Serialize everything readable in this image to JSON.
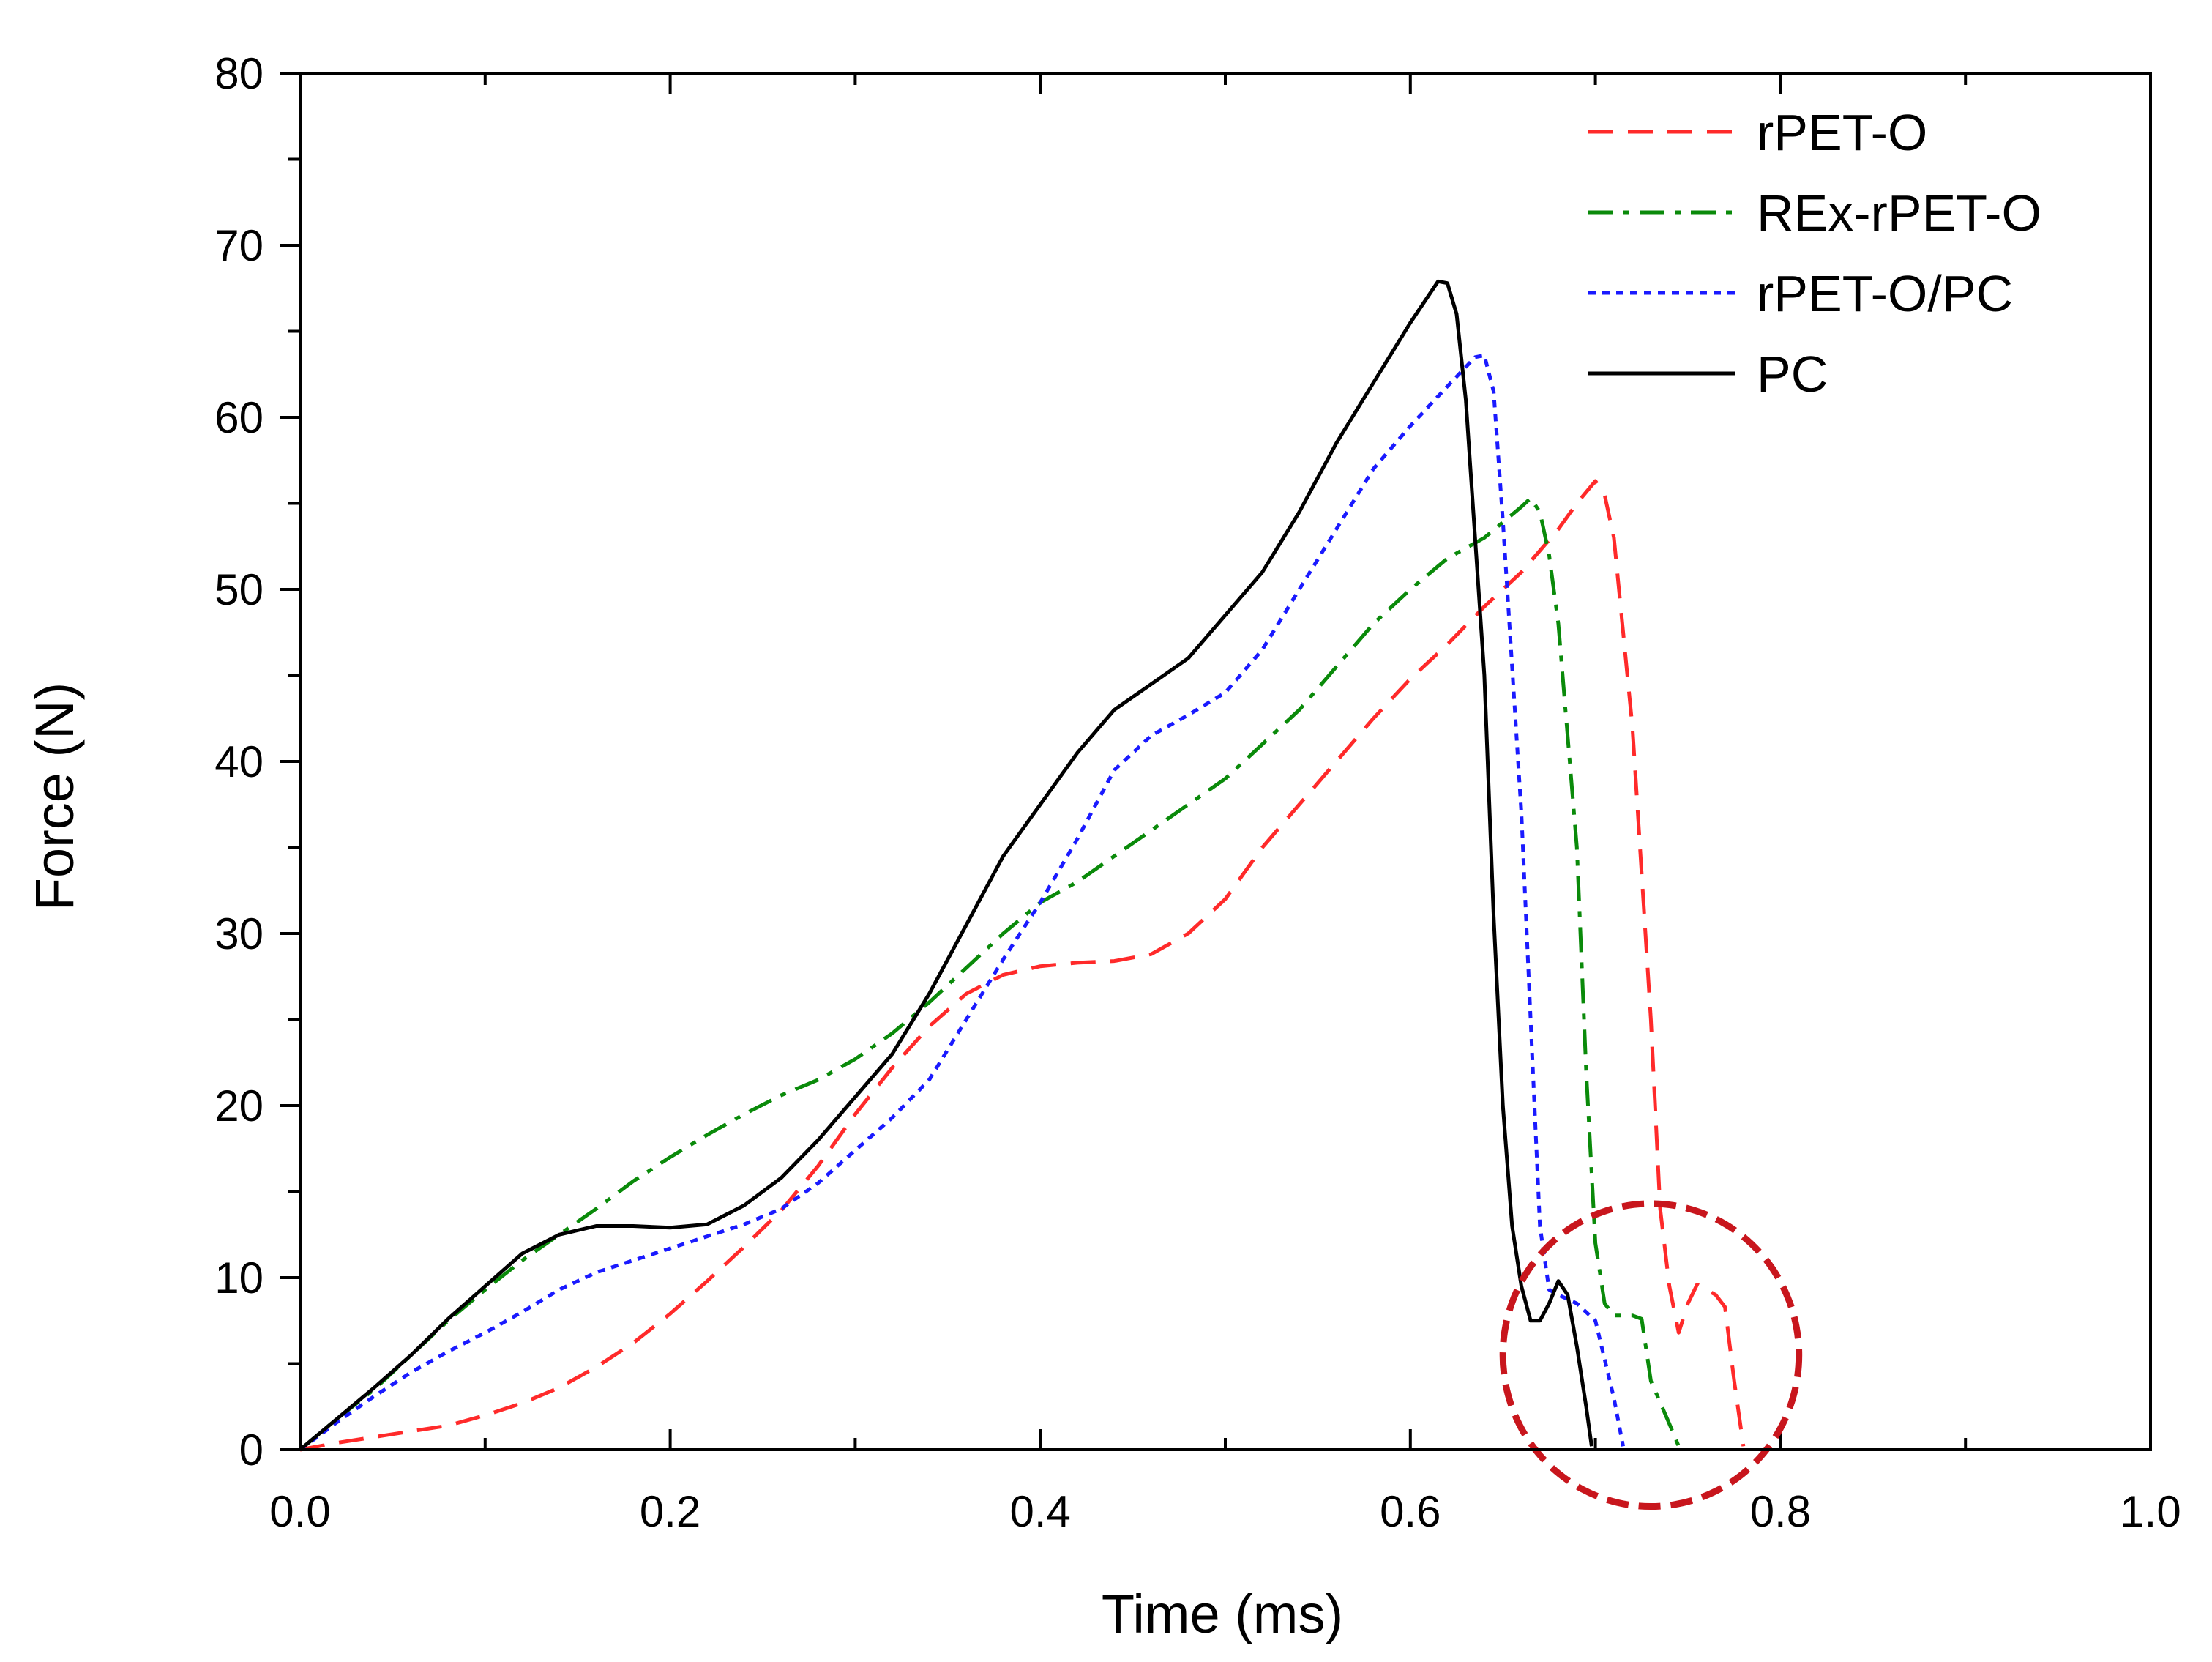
{
  "chart_data": {
    "type": "line",
    "title": "",
    "xlabel": "Time (ms)",
    "ylabel": "Force (N)",
    "xlim": [
      0.0,
      1.0
    ],
    "ylim": [
      0,
      80
    ],
    "x_ticks": [
      0.0,
      0.2,
      0.4,
      0.6,
      0.8,
      1.0
    ],
    "x_tick_labels": [
      "0.0",
      "0.2",
      "0.4",
      "0.6",
      "0.8",
      "1.0"
    ],
    "y_ticks": [
      0,
      10,
      20,
      30,
      40,
      50,
      60,
      70,
      80
    ],
    "y_tick_labels": [
      "0",
      "10",
      "20",
      "30",
      "40",
      "50",
      "60",
      "70",
      "80"
    ],
    "grid": false,
    "legend_position": "top-right",
    "series": [
      {
        "name": "rPET-O",
        "color": "#ff2a2a",
        "dash": "dashed",
        "points": [
          [
            0,
            0
          ],
          [
            0.02,
            0.4
          ],
          [
            0.05,
            0.9
          ],
          [
            0.08,
            1.4
          ],
          [
            0.1,
            2.0
          ],
          [
            0.12,
            2.7
          ],
          [
            0.14,
            3.6
          ],
          [
            0.16,
            4.8
          ],
          [
            0.18,
            6.2
          ],
          [
            0.2,
            7.9
          ],
          [
            0.22,
            9.8
          ],
          [
            0.24,
            11.8
          ],
          [
            0.26,
            13.9
          ],
          [
            0.28,
            16.5
          ],
          [
            0.3,
            19.5
          ],
          [
            0.32,
            22.2
          ],
          [
            0.34,
            24.6
          ],
          [
            0.36,
            26.5
          ],
          [
            0.38,
            27.6
          ],
          [
            0.4,
            28.1
          ],
          [
            0.42,
            28.3
          ],
          [
            0.44,
            28.4
          ],
          [
            0.46,
            28.8
          ],
          [
            0.48,
            30.0
          ],
          [
            0.5,
            32.0
          ],
          [
            0.52,
            35.0
          ],
          [
            0.54,
            37.5
          ],
          [
            0.56,
            40.0
          ],
          [
            0.58,
            42.5
          ],
          [
            0.6,
            44.8
          ],
          [
            0.62,
            46.8
          ],
          [
            0.64,
            49.0
          ],
          [
            0.66,
            51.0
          ],
          [
            0.68,
            53.5
          ],
          [
            0.69,
            55.0
          ],
          [
            0.7,
            56.3
          ],
          [
            0.705,
            55.5
          ],
          [
            0.71,
            53.0
          ],
          [
            0.72,
            42.0
          ],
          [
            0.73,
            25.0
          ],
          [
            0.735,
            14.0
          ],
          [
            0.74,
            9.5
          ],
          [
            0.745,
            6.8
          ],
          [
            0.75,
            8.5
          ],
          [
            0.755,
            9.6
          ],
          [
            0.765,
            9.0
          ],
          [
            0.77,
            8.3
          ],
          [
            0.775,
            4.0
          ],
          [
            0.78,
            0.2
          ]
        ]
      },
      {
        "name": "REx-rPET-O",
        "color": "#0a8a0a",
        "dash": "dashdot",
        "points": [
          [
            0,
            0
          ],
          [
            0.02,
            1.8
          ],
          [
            0.04,
            3.5
          ],
          [
            0.06,
            5.5
          ],
          [
            0.08,
            7.5
          ],
          [
            0.1,
            9.3
          ],
          [
            0.12,
            11.0
          ],
          [
            0.14,
            12.5
          ],
          [
            0.16,
            14.0
          ],
          [
            0.18,
            15.6
          ],
          [
            0.2,
            17.0
          ],
          [
            0.22,
            18.3
          ],
          [
            0.24,
            19.5
          ],
          [
            0.26,
            20.6
          ],
          [
            0.28,
            21.5
          ],
          [
            0.3,
            22.7
          ],
          [
            0.32,
            24.2
          ],
          [
            0.34,
            26.0
          ],
          [
            0.36,
            28.0
          ],
          [
            0.38,
            30.0
          ],
          [
            0.4,
            31.8
          ],
          [
            0.42,
            33.0
          ],
          [
            0.44,
            34.5
          ],
          [
            0.46,
            36.0
          ],
          [
            0.48,
            37.5
          ],
          [
            0.5,
            39.0
          ],
          [
            0.52,
            41.0
          ],
          [
            0.54,
            43.0
          ],
          [
            0.56,
            45.5
          ],
          [
            0.58,
            48.0
          ],
          [
            0.6,
            50.0
          ],
          [
            0.62,
            51.8
          ],
          [
            0.64,
            53.0
          ],
          [
            0.66,
            54.8
          ],
          [
            0.665,
            55.3
          ],
          [
            0.67,
            54.5
          ],
          [
            0.675,
            52.0
          ],
          [
            0.68,
            48.0
          ],
          [
            0.69,
            35.0
          ],
          [
            0.695,
            22.0
          ],
          [
            0.7,
            12.0
          ],
          [
            0.705,
            8.5
          ],
          [
            0.71,
            7.8
          ],
          [
            0.72,
            7.8
          ],
          [
            0.725,
            7.6
          ],
          [
            0.73,
            4.0
          ],
          [
            0.74,
            1.5
          ],
          [
            0.745,
            0.2
          ]
        ]
      },
      {
        "name": "rPET-O/PC",
        "color": "#1a1aff",
        "dash": "dotted",
        "points": [
          [
            0,
            0
          ],
          [
            0.02,
            1.6
          ],
          [
            0.04,
            3.1
          ],
          [
            0.06,
            4.5
          ],
          [
            0.08,
            5.7
          ],
          [
            0.1,
            6.8
          ],
          [
            0.12,
            8.0
          ],
          [
            0.14,
            9.3
          ],
          [
            0.16,
            10.3
          ],
          [
            0.18,
            11.0
          ],
          [
            0.2,
            11.7
          ],
          [
            0.22,
            12.4
          ],
          [
            0.24,
            13.1
          ],
          [
            0.26,
            14.0
          ],
          [
            0.28,
            15.5
          ],
          [
            0.3,
            17.4
          ],
          [
            0.32,
            19.3
          ],
          [
            0.34,
            21.5
          ],
          [
            0.36,
            25.0
          ],
          [
            0.38,
            28.5
          ],
          [
            0.4,
            31.8
          ],
          [
            0.42,
            35.5
          ],
          [
            0.44,
            39.5
          ],
          [
            0.46,
            41.5
          ],
          [
            0.48,
            42.7
          ],
          [
            0.5,
            44.0
          ],
          [
            0.52,
            46.5
          ],
          [
            0.54,
            50.0
          ],
          [
            0.56,
            53.5
          ],
          [
            0.58,
            57.0
          ],
          [
            0.6,
            59.5
          ],
          [
            0.62,
            61.8
          ],
          [
            0.635,
            63.5
          ],
          [
            0.64,
            63.6
          ],
          [
            0.645,
            61.5
          ],
          [
            0.65,
            54.0
          ],
          [
            0.66,
            37.0
          ],
          [
            0.665,
            25.0
          ],
          [
            0.67,
            13.0
          ],
          [
            0.675,
            9.3
          ],
          [
            0.68,
            9.0
          ],
          [
            0.69,
            8.5
          ],
          [
            0.7,
            7.5
          ],
          [
            0.71,
            3.0
          ],
          [
            0.715,
            0.2
          ]
        ]
      },
      {
        "name": "PC",
        "color": "#000000",
        "dash": "solid",
        "points": [
          [
            0,
            0
          ],
          [
            0.02,
            1.8
          ],
          [
            0.04,
            3.6
          ],
          [
            0.06,
            5.5
          ],
          [
            0.08,
            7.6
          ],
          [
            0.1,
            9.5
          ],
          [
            0.12,
            11.4
          ],
          [
            0.14,
            12.5
          ],
          [
            0.16,
            13.0
          ],
          [
            0.18,
            13.0
          ],
          [
            0.2,
            12.9
          ],
          [
            0.22,
            13.1
          ],
          [
            0.24,
            14.2
          ],
          [
            0.26,
            15.8
          ],
          [
            0.28,
            18.0
          ],
          [
            0.3,
            20.5
          ],
          [
            0.32,
            23.0
          ],
          [
            0.34,
            26.5
          ],
          [
            0.36,
            30.5
          ],
          [
            0.38,
            34.5
          ],
          [
            0.4,
            37.5
          ],
          [
            0.42,
            40.5
          ],
          [
            0.44,
            43.0
          ],
          [
            0.46,
            44.5
          ],
          [
            0.48,
            46.0
          ],
          [
            0.5,
            48.5
          ],
          [
            0.52,
            51.0
          ],
          [
            0.54,
            54.5
          ],
          [
            0.56,
            58.5
          ],
          [
            0.58,
            62.0
          ],
          [
            0.6,
            65.5
          ],
          [
            0.615,
            67.9
          ],
          [
            0.62,
            67.8
          ],
          [
            0.625,
            66.0
          ],
          [
            0.63,
            61.0
          ],
          [
            0.64,
            45.0
          ],
          [
            0.645,
            31.0
          ],
          [
            0.65,
            20.0
          ],
          [
            0.655,
            13.0
          ],
          [
            0.66,
            9.5
          ],
          [
            0.665,
            7.5
          ],
          [
            0.67,
            7.5
          ],
          [
            0.675,
            8.5
          ],
          [
            0.68,
            9.8
          ],
          [
            0.685,
            9.0
          ],
          [
            0.69,
            6.0
          ],
          [
            0.695,
            2.5
          ],
          [
            0.698,
            0.2
          ]
        ]
      }
    ],
    "annotations": [
      {
        "type": "ellipse",
        "description": "highlighted region",
        "center": [
          0.73,
          5.5
        ],
        "radius_x": 0.08,
        "radius_y": 8.8,
        "color": "#c8161d",
        "dash": "dashed"
      }
    ]
  }
}
